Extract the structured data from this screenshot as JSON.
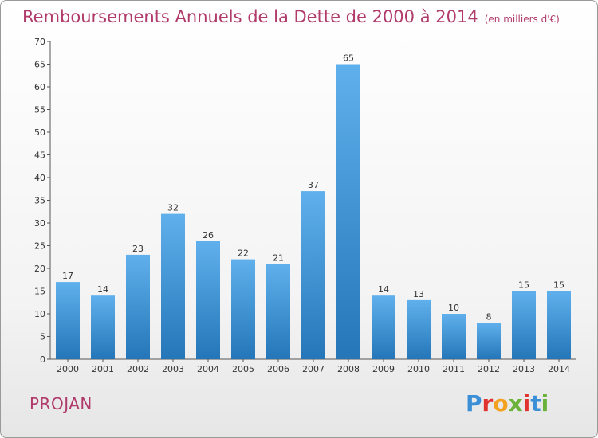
{
  "header": {
    "title": "Remboursements Annuels de la Dette de 2000 à 2014",
    "unit": "(en milliers d'€)"
  },
  "footer": {
    "commune": "PROJAN",
    "logo": "Proxiti"
  },
  "colors": {
    "bar_top": "#5fb0ec",
    "bar_bottom": "#2576b8",
    "title": "#b03a6a"
  },
  "chart_data": {
    "type": "bar",
    "categories": [
      "2000",
      "2001",
      "2002",
      "2003",
      "2004",
      "2005",
      "2006",
      "2007",
      "2008",
      "2009",
      "2010",
      "2011",
      "2012",
      "2013",
      "2014"
    ],
    "values": [
      17,
      14,
      23,
      32,
      26,
      22,
      21,
      37,
      65,
      14,
      13,
      10,
      8,
      15,
      15
    ],
    "ylim": [
      0,
      70
    ],
    "yticks": [
      0,
      5,
      10,
      15,
      20,
      25,
      30,
      35,
      40,
      45,
      50,
      55,
      60,
      65,
      70
    ],
    "grid": false,
    "legend": "none"
  }
}
